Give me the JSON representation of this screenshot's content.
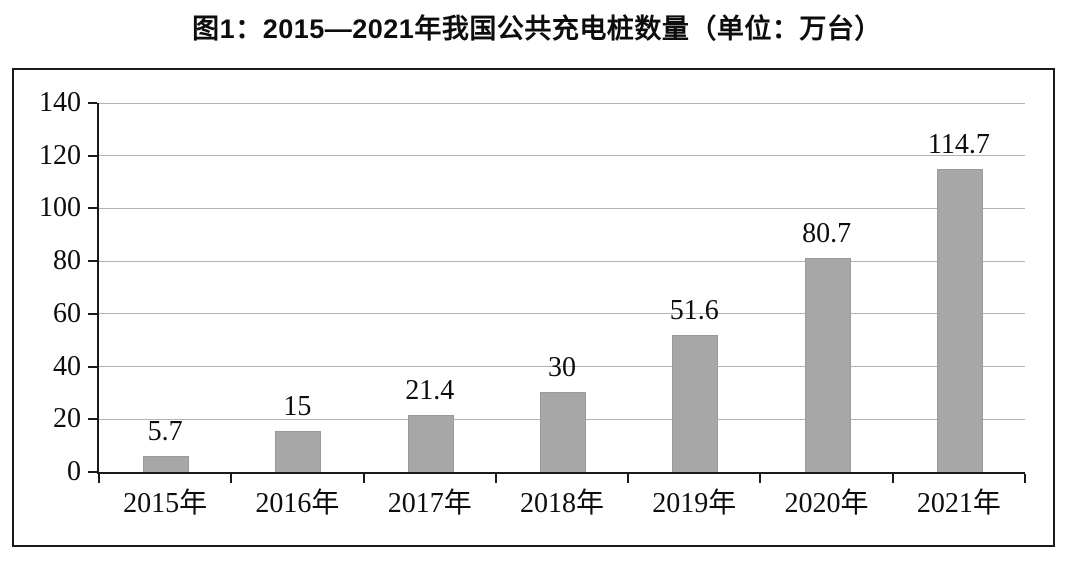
{
  "title": "图1：2015—2021年我国公共充电桩数量（单位：万台）",
  "chart_data": {
    "type": "bar",
    "title": "图1：2015—2021年我国公共充电桩数量（单位：万台）",
    "categories": [
      "2015年",
      "2016年",
      "2017年",
      "2018年",
      "2019年",
      "2020年",
      "2021年"
    ],
    "values": [
      5.7,
      15,
      21.4,
      30,
      51.6,
      80.7,
      114.7
    ],
    "value_labels": [
      "5.7",
      "15",
      "21.4",
      "30",
      "51.6",
      "80.7",
      "114.7"
    ],
    "xlabel": "",
    "ylabel": "",
    "ylim": [
      0,
      140
    ],
    "yticks": [
      0,
      20,
      40,
      60,
      80,
      100,
      120,
      140
    ],
    "grid": true,
    "legend_position": "none",
    "bar_color": "#a7a7a7",
    "bar_border_color": "#9a9a9a",
    "gridline_color": "#b3b3b3",
    "axis_color": "#1a1a1a",
    "frame_border_color": "#1a1a1a",
    "text_color": "#0d0d0d",
    "background_color": "#ffffff"
  }
}
